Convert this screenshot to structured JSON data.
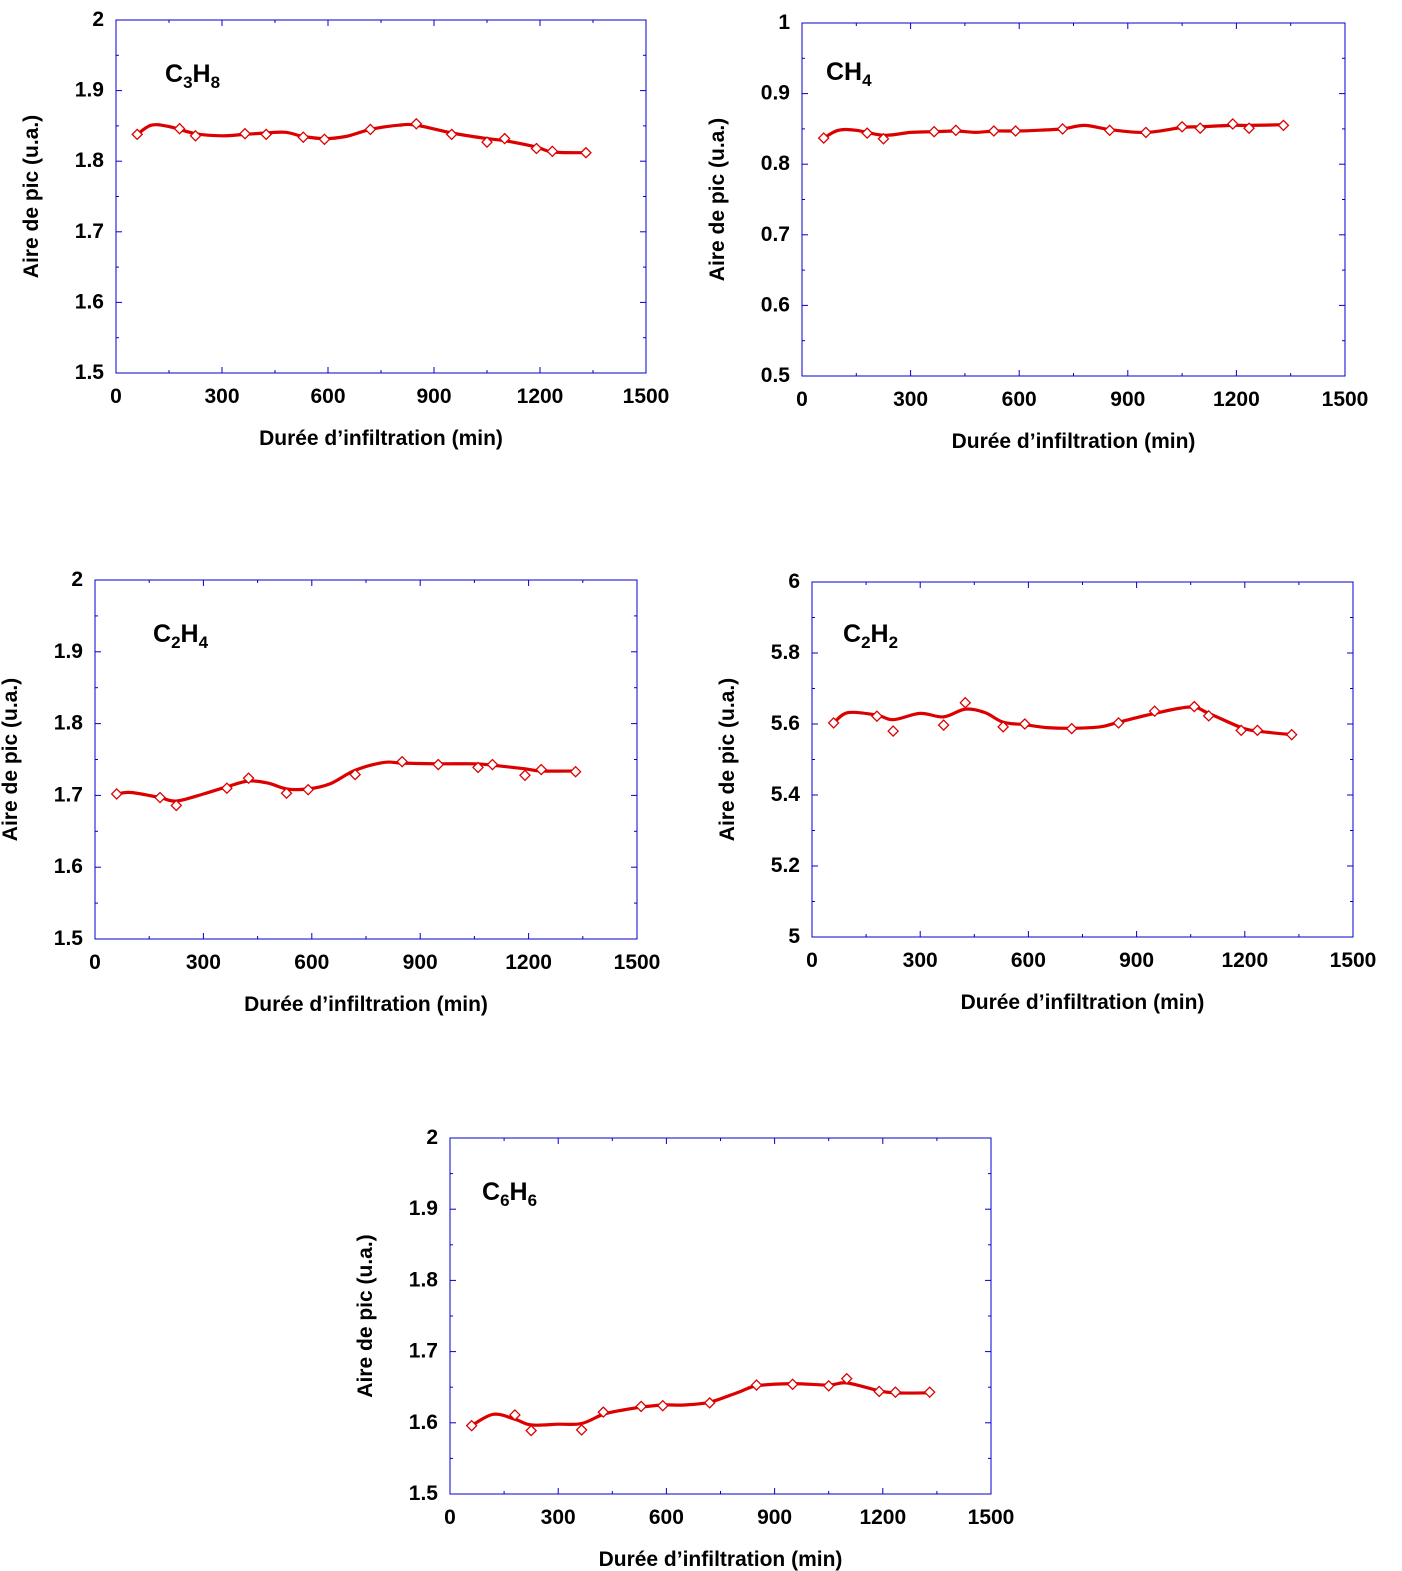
{
  "colors": {
    "axis": "#0000cc",
    "series": "#dd0000",
    "text": "#000000"
  },
  "chart_data": [
    {
      "type": "scatter",
      "title_main": "C",
      "title_parts": [
        [
          "C",
          ""
        ],
        [
          "3",
          "sub"
        ],
        [
          "H",
          ""
        ],
        [
          "8",
          "sub"
        ]
      ],
      "xlabel": "Durée d’infiltration (min)",
      "ylabel": "Aire de pic (u.a.)",
      "xlim": [
        0,
        1500
      ],
      "ylim": [
        1.5,
        2
      ],
      "xticks": [
        "0",
        "300",
        "600",
        "900",
        "1200",
        "1500"
      ],
      "yticks": [
        "1.5",
        "1.6",
        "1.7",
        "1.8",
        "1.9",
        "2"
      ],
      "marker": "diamond-open",
      "fit_line": true,
      "legend": "none",
      "series": [
        {
          "x": [
            60,
            180,
            225,
            365,
            425,
            530,
            590,
            720,
            850,
            950,
            1050,
            1100,
            1190,
            1235,
            1330
          ],
          "y": [
            1.838,
            1.846,
            1.836,
            1.839,
            1.838,
            1.834,
            1.831,
            1.845,
            1.853,
            1.838,
            1.827,
            1.832,
            1.818,
            1.814,
            1.812
          ]
        }
      ],
      "fit": {
        "x": [
          60,
          100,
          150,
          225,
          300,
          365,
          425,
          480,
          530,
          590,
          650,
          720,
          800,
          850,
          950,
          1050,
          1100,
          1190,
          1235,
          1330
        ],
        "y": [
          1.838,
          1.851,
          1.849,
          1.839,
          1.836,
          1.838,
          1.84,
          1.841,
          1.835,
          1.832,
          1.835,
          1.845,
          1.851,
          1.851,
          1.84,
          1.832,
          1.829,
          1.82,
          1.813,
          1.812
        ]
      }
    },
    {
      "type": "scatter",
      "title_parts": [
        [
          "CH",
          ""
        ],
        [
          "4",
          "sub"
        ]
      ],
      "xlabel": "Durée d’infiltration (min)",
      "ylabel": "Aire de pic (u.a.)",
      "xlim": [
        0,
        1500
      ],
      "ylim": [
        0.5,
        1
      ],
      "xticks": [
        "0",
        "300",
        "600",
        "900",
        "1200",
        "1500"
      ],
      "yticks": [
        "0.5",
        "0.6",
        "0.7",
        "0.8",
        "0.9",
        "1"
      ],
      "marker": "diamond-open",
      "fit_line": true,
      "legend": "none",
      "series": [
        {
          "x": [
            60,
            180,
            225,
            365,
            425,
            530,
            590,
            720,
            850,
            950,
            1050,
            1100,
            1190,
            1235,
            1330
          ],
          "y": [
            0.837,
            0.844,
            0.836,
            0.846,
            0.848,
            0.847,
            0.847,
            0.85,
            0.848,
            0.845,
            0.853,
            0.851,
            0.857,
            0.851,
            0.855
          ]
        }
      ],
      "fit": {
        "x": [
          60,
          100,
          150,
          225,
          300,
          365,
          425,
          480,
          530,
          590,
          650,
          720,
          780,
          850,
          950,
          1050,
          1100,
          1190,
          1235,
          1330
        ],
        "y": [
          0.837,
          0.848,
          0.848,
          0.841,
          0.845,
          0.846,
          0.847,
          0.845,
          0.847,
          0.847,
          0.848,
          0.85,
          0.855,
          0.849,
          0.845,
          0.852,
          0.853,
          0.855,
          0.855,
          0.856
        ]
      }
    },
    {
      "type": "scatter",
      "title_parts": [
        [
          "C",
          ""
        ],
        [
          "2",
          "sub"
        ],
        [
          "H",
          ""
        ],
        [
          "4",
          "sub"
        ]
      ],
      "xlabel": "Durée d’infiltration (min)",
      "ylabel": "Aire de pic (u.a.)",
      "xlim": [
        0,
        1500
      ],
      "ylim": [
        1.5,
        2
      ],
      "xticks": [
        "0",
        "300",
        "600",
        "900",
        "1200",
        "1500"
      ],
      "yticks": [
        "1.5",
        "1.6",
        "1.7",
        "1.8",
        "1.9",
        "2"
      ],
      "marker": "diamond-open",
      "fit_line": true,
      "legend": "none",
      "series": [
        {
          "x": [
            60,
            180,
            225,
            365,
            425,
            530,
            590,
            720,
            850,
            950,
            1060,
            1100,
            1190,
            1235,
            1330
          ],
          "y": [
            1.702,
            1.697,
            1.686,
            1.71,
            1.724,
            1.703,
            1.708,
            1.729,
            1.747,
            1.743,
            1.739,
            1.743,
            1.728,
            1.736,
            1.733
          ]
        }
      ],
      "fit": {
        "x": [
          60,
          100,
          180,
          225,
          300,
          365,
          425,
          480,
          530,
          590,
          650,
          720,
          800,
          850,
          950,
          1050,
          1100,
          1190,
          1235,
          1330
        ],
        "y": [
          1.702,
          1.704,
          1.697,
          1.692,
          1.702,
          1.712,
          1.72,
          1.717,
          1.709,
          1.709,
          1.716,
          1.735,
          1.746,
          1.745,
          1.744,
          1.744,
          1.742,
          1.737,
          1.734,
          1.734
        ]
      }
    },
    {
      "type": "scatter",
      "title_parts": [
        [
          "C",
          ""
        ],
        [
          "2",
          "sub"
        ],
        [
          "H",
          ""
        ],
        [
          "2",
          "sub"
        ]
      ],
      "xlabel": "Durée d’infiltration (min)",
      "ylabel": "Aire de pic (u.a.)",
      "xlim": [
        0,
        1500
      ],
      "ylim": [
        5,
        6
      ],
      "xticks": [
        "0",
        "300",
        "600",
        "900",
        "1200",
        "1500"
      ],
      "yticks": [
        "5",
        "5.2",
        "5.4",
        "5.6",
        "5.8",
        "6"
      ],
      "marker": "diamond-open",
      "fit_line": true,
      "legend": "none",
      "series": [
        {
          "x": [
            60,
            180,
            225,
            365,
            425,
            530,
            590,
            720,
            850,
            950,
            1060,
            1100,
            1190,
            1235,
            1330
          ],
          "y": [
            5.603,
            5.622,
            5.58,
            5.597,
            5.66,
            5.592,
            5.6,
            5.587,
            5.603,
            5.636,
            5.649,
            5.623,
            5.582,
            5.582,
            5.57
          ]
        }
      ],
      "fit": {
        "x": [
          60,
          100,
          180,
          225,
          300,
          365,
          425,
          480,
          530,
          590,
          650,
          720,
          800,
          850,
          950,
          1050,
          1100,
          1190,
          1235,
          1330
        ],
        "y": [
          5.603,
          5.632,
          5.625,
          5.612,
          5.63,
          5.62,
          5.642,
          5.632,
          5.605,
          5.598,
          5.59,
          5.588,
          5.592,
          5.605,
          5.63,
          5.648,
          5.63,
          5.59,
          5.58,
          5.57
        ]
      }
    },
    {
      "type": "scatter",
      "title_parts": [
        [
          "C",
          ""
        ],
        [
          "6",
          "sub"
        ],
        [
          "H",
          ""
        ],
        [
          "6",
          "sub"
        ]
      ],
      "xlabel": "Durée d’infiltration (min)",
      "ylabel": "Aire de pic (u.a.)",
      "xlim": [
        0,
        1500
      ],
      "ylim": [
        1.5,
        2
      ],
      "xticks": [
        "0",
        "300",
        "600",
        "900",
        "1200",
        "1500"
      ],
      "yticks": [
        "1.5",
        "1.6",
        "1.7",
        "1.8",
        "1.9",
        "2"
      ],
      "marker": "diamond-open",
      "fit_line": true,
      "legend": "none",
      "series": [
        {
          "x": [
            60,
            180,
            225,
            365,
            425,
            530,
            590,
            720,
            850,
            950,
            1050,
            1100,
            1190,
            1235,
            1330
          ],
          "y": [
            1.596,
            1.611,
            1.589,
            1.59,
            1.615,
            1.623,
            1.624,
            1.628,
            1.653,
            1.654,
            1.652,
            1.662,
            1.644,
            1.643,
            1.643
          ]
        }
      ],
      "fit": {
        "x": [
          60,
          120,
          180,
          225,
          300,
          365,
          425,
          480,
          530,
          590,
          650,
          720,
          800,
          850,
          950,
          1050,
          1100,
          1190,
          1235,
          1330
        ],
        "y": [
          1.596,
          1.612,
          1.605,
          1.597,
          1.598,
          1.599,
          1.612,
          1.618,
          1.622,
          1.625,
          1.625,
          1.629,
          1.643,
          1.652,
          1.655,
          1.653,
          1.656,
          1.645,
          1.642,
          1.642
        ]
      }
    }
  ]
}
